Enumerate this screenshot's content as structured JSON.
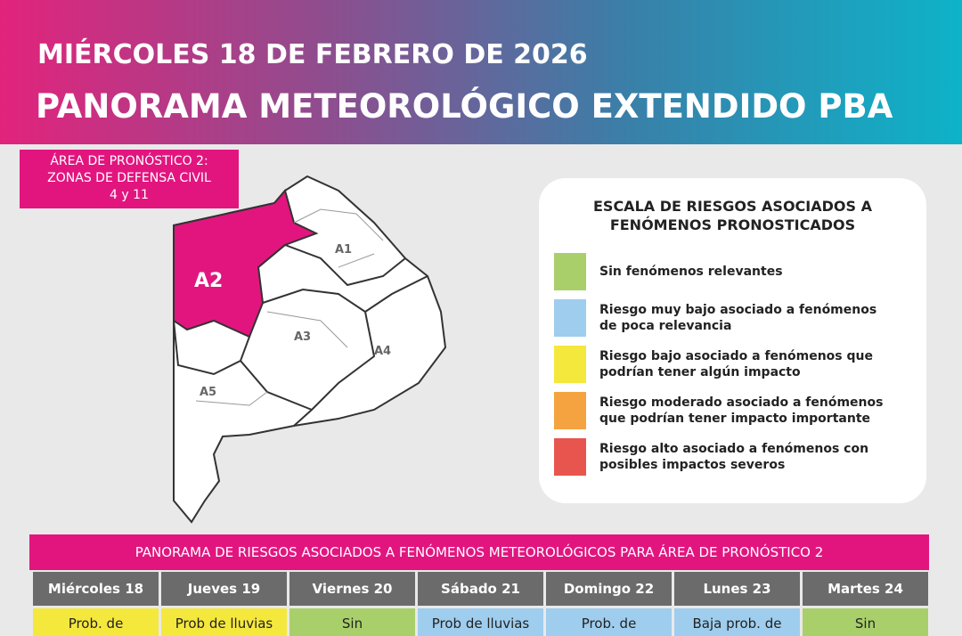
{
  "header": {
    "date": "MIÉRCOLES 18 DE FEBRERO DE 2026",
    "title": "PANORAMA METEOROLÓGICO EXTENDIDO PBA"
  },
  "area_box": {
    "lines": [
      "ÁREA DE PRONÓSTICO 2:",
      "ZONAS DE DEFENSA CIVIL",
      "4 y 11"
    ]
  },
  "map": {
    "labels": [
      "A1",
      "A2",
      "A3",
      "A4",
      "A5"
    ]
  },
  "legend": {
    "title": [
      "ESCALA DE RIESGOS ASOCIADOS A",
      "FENÓMENOS PRONOSTICADOS"
    ],
    "items": [
      {
        "color": "#a9cf6a",
        "text": [
          "Sin fenómenos relevantes"
        ]
      },
      {
        "color": "#9fcdee",
        "text": [
          "Riesgo muy bajo asociado a fenómenos",
          "de poca relevancia"
        ]
      },
      {
        "color": "#f5e83c",
        "text": [
          "Riesgo bajo asociado a fenómenos que",
          "podrían tener algún impacto"
        ]
      },
      {
        "color": "#f4a340",
        "text": [
          "Riesgo moderado asociado a fenómenos",
          "que podrían tener impacto importante"
        ]
      },
      {
        "color": "#e8554f",
        "text": [
          "Riesgo alto asociado a fenómenos con",
          "posibles impactos severos"
        ]
      }
    ]
  },
  "table": {
    "title": "PANORAMA DE RIESGOS ASOCIADOS A FENÓMENOS METEOROLÓGICOS PARA ÁREA DE PRONÓSTICO 2",
    "days": [
      "Miércoles 18",
      "Jueves 19",
      "Viernes 20",
      "Sábado 21",
      "Domingo 22",
      "Lunes 23",
      "Martes 24"
    ],
    "cells": [
      {
        "text": "Prob. de",
        "color": "#f5e83c"
      },
      {
        "text": "Prob de lluvias",
        "color": "#f5e83c"
      },
      {
        "text": "Sin",
        "color": "#a9cf6a"
      },
      {
        "text": "Prob de lluvias",
        "color": "#9fcdee"
      },
      {
        "text": "Prob. de",
        "color": "#9fcdee"
      },
      {
        "text": "Baja prob. de",
        "color": "#9fcdee"
      },
      {
        "text": "Sin",
        "color": "#a9cf6a"
      }
    ]
  }
}
